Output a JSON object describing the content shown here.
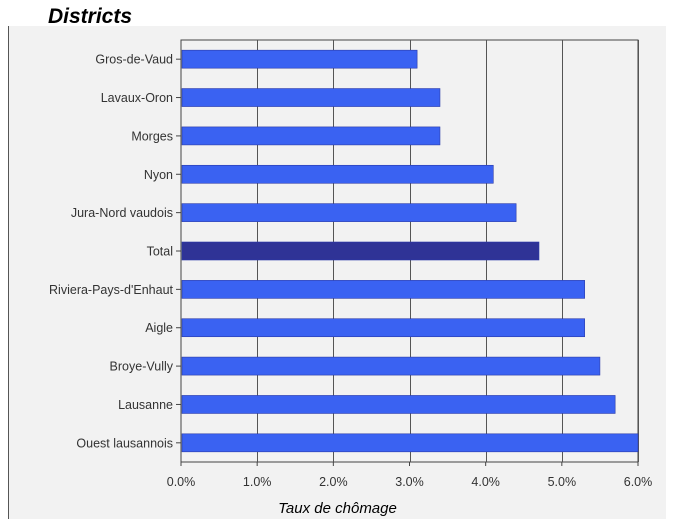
{
  "chart_data": {
    "type": "bar",
    "orientation": "horizontal",
    "title": "Districts",
    "xlabel": "Taux de chômage",
    "ylabel": "",
    "categories": [
      "Gros-de-Vaud",
      "Lavaux-Oron",
      "Morges",
      "Nyon",
      "Jura-Nord vaudois",
      "Total",
      "Riviera-Pays-d'Enhaut",
      "Aigle",
      "Broye-Vully",
      "Lausanne",
      "Ouest lausannois"
    ],
    "values": [
      3.1,
      3.4,
      3.4,
      4.1,
      4.4,
      4.7,
      5.3,
      5.3,
      5.5,
      5.7,
      6.0
    ],
    "highlight": "Total",
    "xlim": [
      0,
      6
    ],
    "xticks": [
      "0.0%",
      "1.0%",
      "2.0%",
      "3.0%",
      "4.0%",
      "5.0%",
      "6.0%"
    ],
    "grid": "vertical",
    "legend": "none",
    "colors": {
      "bar": "#3a62f2",
      "bar_highlight": "#2f3396",
      "background": "#f2f2f2",
      "gridline": "#555555"
    }
  }
}
